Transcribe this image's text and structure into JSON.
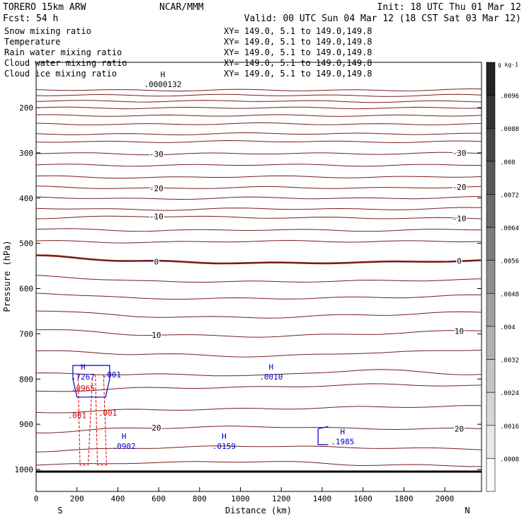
{
  "header": {
    "model": "TORERO  15km ARW",
    "org": "NCAR/MMM",
    "init": "Init: 18 UTC Thu 01 Mar 12",
    "fcst": "Fcst:   54 h",
    "valid": "Valid: 00 UTC Sun 04 Mar 12 (18 CST Sat 03 Mar 12)"
  },
  "legend": [
    {
      "name": "Snow mixing ratio",
      "range": "XY= 149.0,  5.1 to 149.0,149.8",
      "color": "#000000"
    },
    {
      "name": "Temperature",
      "range": "XY= 149.0,  5.1 to 149.0,149.8",
      "color": "#cc0000"
    },
    {
      "name": "Rain water mixing ratio",
      "range": "XY= 149.0,  5.1 to 149.0,149.8",
      "color": "#cc0000"
    },
    {
      "name": "Cloud water mixing ratio",
      "range": "XY= 149.0,  5.1 to 149.0,149.8",
      "color": "#0000cc"
    },
    {
      "name": "Cloud ice mixing ratio",
      "range": "XY= 149.0,  5.1 to 149.0,149.8",
      "color": "#000000"
    }
  ],
  "chart_data": {
    "type": "cross-section contour",
    "xlabel": "Distance (km)",
    "ylabel": "Pressure (hPa)",
    "xlim": [
      0,
      2180
    ],
    "ylim": [
      1050,
      100
    ],
    "xticks": [
      0,
      200,
      400,
      600,
      800,
      1000,
      1200,
      1400,
      1600,
      1800,
      2000
    ],
    "yticks": [
      200,
      300,
      400,
      500,
      600,
      700,
      800,
      900,
      1000
    ],
    "direction_labels": {
      "left": "S",
      "right": "N"
    },
    "temperature_isotherms": [
      {
        "p": [
          160,
          162,
          161,
          162,
          160
        ],
        "label": ""
      },
      {
        "p": [
          172,
          173,
          172,
          174,
          172
        ],
        "label": ""
      },
      {
        "p": [
          185,
          186,
          185,
          187,
          186
        ],
        "label": ""
      },
      {
        "p": [
          200,
          201,
          200,
          201,
          200
        ],
        "label": ""
      },
      {
        "p": [
          217,
          218,
          217,
          218,
          217
        ],
        "label": ""
      },
      {
        "p": [
          236,
          237,
          235,
          237,
          236
        ],
        "label": ""
      },
      {
        "p": [
          258,
          259,
          257,
          258,
          258
        ],
        "label": ""
      },
      {
        "p": [
          275,
          276,
          274,
          276,
          275
        ],
        "label": ""
      },
      {
        "p": [
          300,
          303,
          301,
          302,
          300
        ],
        "label": "-30"
      },
      {
        "p": [
          326,
          328,
          326,
          328,
          326
        ],
        "label": ""
      },
      {
        "p": [
          352,
          355,
          352,
          354,
          352
        ],
        "label": ""
      },
      {
        "p": [
          375,
          379,
          376,
          378,
          375
        ],
        "label": "-20"
      },
      {
        "p": [
          398,
          402,
          399,
          401,
          398
        ],
        "label": ""
      },
      {
        "p": [
          422,
          426,
          423,
          425,
          422
        ],
        "label": ""
      },
      {
        "p": [
          444,
          440,
          443,
          444,
          445
        ],
        "label": "-10"
      },
      {
        "p": [
          468,
          472,
          470,
          472,
          469
        ],
        "label": ""
      },
      {
        "p": [
          495,
          498,
          495,
          496,
          495
        ],
        "label": ""
      },
      {
        "p": [
          528,
          540,
          544,
          542,
          538
        ],
        "label": "0",
        "bold": true
      },
      {
        "p": [
          572,
          584,
          585,
          583,
          580
        ],
        "label": ""
      },
      {
        "p": [
          610,
          622,
          622,
          620,
          615
        ],
        "label": ""
      },
      {
        "p": [
          648,
          662,
          664,
          658,
          652
        ],
        "label": ""
      },
      {
        "p": [
          690,
          702,
          706,
          700,
          692
        ],
        "label": "10"
      },
      {
        "p": [
          738,
          745,
          750,
          742,
          735
        ],
        "label": ""
      },
      {
        "p": [
          788,
          790,
          792,
          780,
          790
        ],
        "label": ""
      },
      {
        "p": [
          828,
          820,
          818,
          812,
          815
        ],
        "label": ""
      },
      {
        "p": [
          874,
          868,
          866,
          862,
          860
        ],
        "label": ""
      },
      {
        "p": [
          918,
          908,
          905,
          910,
          910
        ],
        "label": "20"
      },
      {
        "p": [
          960,
          952,
          948,
          952,
          955
        ],
        "label": ""
      },
      {
        "p": [
          990,
          985,
          982,
          990,
          992
        ],
        "label": ""
      }
    ],
    "maxima": [
      {
        "label": "H",
        "value": ".0000132",
        "x": 620,
        "p": 148,
        "series": "snow"
      },
      {
        "label": "H",
        "value": ".7267",
        "x": 230,
        "p": 795,
        "series": "cloud"
      },
      {
        "label": "H",
        "value": ".0010",
        "x": 1150,
        "p": 795,
        "series": "cloud"
      },
      {
        "label": "H",
        "value": ".0902",
        "x": 430,
        "p": 948,
        "series": "cloud"
      },
      {
        "label": "H",
        "value": ".0159",
        "x": 920,
        "p": 948,
        "series": "cloud"
      },
      {
        "label": "H",
        "value": ".1985",
        "x": 1500,
        "p": 938,
        "series": "cloud"
      }
    ],
    "rain_labels": [
      {
        "value": ".001",
        "x": 200,
        "p": 880
      },
      {
        "value": ".001",
        "x": 350,
        "p": 875
      },
      {
        "value": ".0965",
        "x": 230,
        "p": 820
      }
    ],
    "cloud_labels": [
      {
        "value": ".001",
        "x": 370,
        "p": 790
      }
    ],
    "colorbar": {
      "unit": "g kg-1",
      "ticks": [
        ".0008",
        ".0016",
        ".0024",
        ".0032",
        ".004",
        ".0048",
        ".0056",
        ".0064",
        ".0072",
        ".008",
        ".0088",
        ".0096"
      ]
    }
  }
}
